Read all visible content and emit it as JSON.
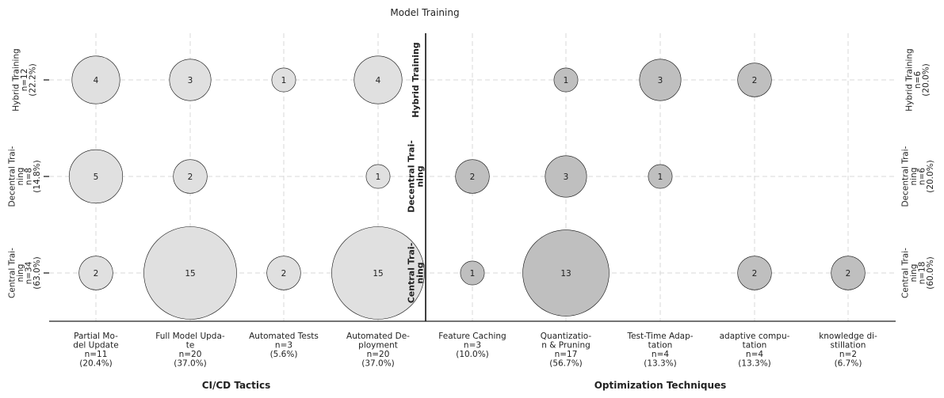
{
  "chart_data": {
    "type": "bubble",
    "title": "Model Training",
    "colors": {
      "left_bubble": "#e0e0e0",
      "right_bubble": "#bfbfbf",
      "grid": "#d8d8d8",
      "axis": "#222222"
    },
    "grid": true,
    "rows": [
      {
        "key": "hybrid",
        "center_label": [
          "Hybrid Training"
        ],
        "left_label": [
          "Hybrid Training",
          "n=12",
          "(22.2%)"
        ],
        "right_label": [
          "Hybrid Training",
          "n=6",
          "(20.0%)"
        ]
      },
      {
        "key": "decentral",
        "center_label": [
          "Decentral Trai-",
          "ning"
        ],
        "left_label": [
          "Decentral Trai-",
          "ning",
          "n=8",
          "(14.8%)"
        ],
        "right_label": [
          "Decentral Trai-",
          "ning",
          "n=6",
          "(20.0%)"
        ]
      },
      {
        "key": "central",
        "center_label": [
          "Central Trai-",
          "ning"
        ],
        "left_label": [
          "Central Trai-",
          "ning",
          "n=34",
          "(63.0%)"
        ],
        "right_label": [
          "Central Trai-",
          "ning",
          "n=18",
          "(60.0%)"
        ]
      }
    ],
    "panels": [
      {
        "name": "CI/CD Tactics",
        "color": "#e0e0e0",
        "columns": [
          {
            "label": [
              "Partial Mo-",
              "del Update",
              "n=11",
              "(20.4%)"
            ],
            "values": {
              "hybrid": 4,
              "decentral": 5,
              "central": 2
            }
          },
          {
            "label": [
              "Full Model Upda-",
              "te",
              "n=20",
              "(37.0%)"
            ],
            "values": {
              "hybrid": 3,
              "decentral": 2,
              "central": 15
            }
          },
          {
            "label": [
              "Automated Tests",
              "n=3",
              "(5.6%)"
            ],
            "values": {
              "hybrid": 1,
              "decentral": 0,
              "central": 2
            }
          },
          {
            "label": [
              "Automated De-",
              "ployment",
              "n=20",
              "(37.0%)"
            ],
            "values": {
              "hybrid": 4,
              "decentral": 1,
              "central": 15
            }
          }
        ]
      },
      {
        "name": "Optimization Techniques",
        "color": "#bfbfbf",
        "columns": [
          {
            "label": [
              "Feature Caching",
              "n=3",
              "(10.0%)"
            ],
            "values": {
              "hybrid": 0,
              "decentral": 2,
              "central": 1
            }
          },
          {
            "label": [
              "Quantizatio-",
              "n & Pruning",
              "n=17",
              "(56.7%)"
            ],
            "values": {
              "hybrid": 1,
              "decentral": 3,
              "central": 13
            }
          },
          {
            "label": [
              "Test-Time Adap-",
              "tation",
              "n=4",
              "(13.3%)"
            ],
            "values": {
              "hybrid": 3,
              "decentral": 1,
              "central": 0
            }
          },
          {
            "label": [
              "adaptive compu-",
              "tation",
              "n=4",
              "(13.3%)"
            ],
            "values": {
              "hybrid": 2,
              "decentral": 0,
              "central": 2
            }
          },
          {
            "label": [
              "knowledge di-",
              "stillation",
              "n=2",
              "(6.7%)"
            ],
            "values": {
              "hybrid": 0,
              "decentral": 0,
              "central": 2
            }
          }
        ]
      }
    ]
  }
}
